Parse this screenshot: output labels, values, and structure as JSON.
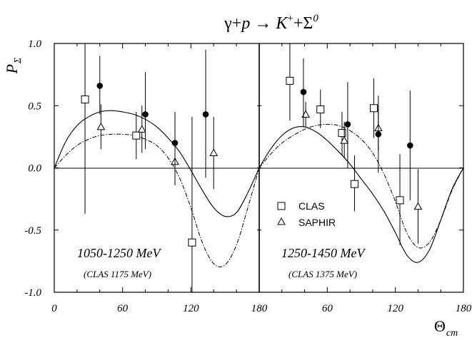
{
  "chart_data": {
    "type": "scatter",
    "title": {
      "gamma": "γ",
      "plus1": "+",
      "p": "p",
      "arrow": " → ",
      "k": "K",
      "k_sup": "+",
      "plus2": "+",
      "sigma": "Σ",
      "sigma_sup": "0"
    },
    "ylabel": {
      "base": "P",
      "sub": "Σ"
    },
    "xlabel": {
      "base": "Θ",
      "sub": "cm"
    },
    "ylim": [
      -1.0,
      1.0
    ],
    "yticks": [
      "1.0",
      "0.5",
      "0.0",
      "-0.5",
      "-1.0"
    ],
    "ytick_values": [
      1.0,
      0.5,
      0.0,
      -0.5,
      -1.0
    ],
    "xlim": [
      0,
      180
    ],
    "xtick_values": [
      0,
      60,
      120,
      180
    ],
    "xtick_labels_panel1": [
      "0",
      "60",
      "120",
      "180"
    ],
    "xtick_labels_panel2": [
      "60",
      "120",
      "180"
    ],
    "legend": {
      "position": "center-left of right panel",
      "clas": "CLAS",
      "saphir": "SAPHIR"
    },
    "panels": [
      {
        "energy_label": "1050-1250 MeV",
        "note": "(CLAS 1175 MeV)",
        "clas": [
          {
            "x": 27,
            "y": 0.55,
            "lo": -0.37,
            "hi": 1.0
          },
          {
            "x": 72,
            "y": 0.26,
            "lo": 0.07,
            "hi": 0.45
          },
          {
            "x": 121,
            "y": -0.6,
            "lo": -1.0,
            "hi": 0.41
          }
        ],
        "saphir": [
          {
            "x": 41,
            "y": 0.33,
            "lo": 0.15,
            "hi": 0.51
          },
          {
            "x": 77,
            "y": 0.31,
            "lo": 0.12,
            "hi": 0.5
          },
          {
            "x": 106,
            "y": 0.05,
            "lo": -0.14,
            "hi": 0.25
          },
          {
            "x": 140,
            "y": 0.12,
            "lo": -0.17,
            "hi": 0.41
          }
        ],
        "filled": [
          {
            "x": 40,
            "y": 0.66,
            "lo": 0.43,
            "hi": 0.9
          },
          {
            "x": 80,
            "y": 0.43,
            "lo": 0.15,
            "hi": 0.77
          },
          {
            "x": 106,
            "y": 0.2,
            "lo": -0.05,
            "hi": 0.45
          },
          {
            "x": 133,
            "y": 0.43,
            "lo": -0.08,
            "hi": 0.95
          }
        ],
        "solid_curve": {
          "x": [
            0,
            10,
            20,
            30,
            40,
            50,
            60,
            70,
            80,
            90,
            100,
            110,
            120,
            130,
            140,
            150,
            160,
            170,
            180
          ],
          "y": [
            0,
            0.21,
            0.34,
            0.41,
            0.45,
            0.46,
            0.45,
            0.43,
            0.39,
            0.33,
            0.24,
            0.13,
            -0.02,
            -0.18,
            -0.32,
            -0.39,
            -0.36,
            -0.2,
            0
          ]
        },
        "dashed_curve": {
          "x": [
            0,
            10,
            20,
            30,
            40,
            50,
            60,
            70,
            80,
            90,
            100,
            110,
            120,
            130,
            140,
            150,
            160,
            170,
            180
          ],
          "y": [
            0,
            0.1,
            0.18,
            0.23,
            0.26,
            0.27,
            0.27,
            0.26,
            0.23,
            0.18,
            0.08,
            -0.08,
            -0.32,
            -0.6,
            -0.77,
            -0.78,
            -0.62,
            -0.32,
            0
          ]
        }
      },
      {
        "energy_label": "1250-1450 MeV",
        "note": "(CLAS 1375 MeV)",
        "clas": [
          {
            "x": 27,
            "y": 0.7,
            "lo": 0.38,
            "hi": 1.0
          },
          {
            "x": 54,
            "y": 0.47,
            "lo": 0.32,
            "hi": 0.63
          },
          {
            "x": 73,
            "y": 0.28,
            "lo": 0.1,
            "hi": 0.45
          },
          {
            "x": 84,
            "y": -0.13,
            "lo": -0.35,
            "hi": 0.1
          },
          {
            "x": 101,
            "y": 0.48,
            "lo": 0.24,
            "hi": 0.72
          },
          {
            "x": 124,
            "y": -0.26,
            "lo": -0.62,
            "hi": 0.11
          }
        ],
        "saphir": [
          {
            "x": 41,
            "y": 0.43,
            "lo": 0.33,
            "hi": 0.53
          },
          {
            "x": 75,
            "y": 0.22,
            "lo": 0.08,
            "hi": 0.37
          },
          {
            "x": 105,
            "y": 0.32,
            "lo": 0.14,
            "hi": 0.5
          },
          {
            "x": 140,
            "y": -0.31,
            "lo": -0.61,
            "hi": -0.01
          }
        ],
        "filled": [
          {
            "x": 39,
            "y": 0.61,
            "lo": 0.33,
            "hi": 0.88
          },
          {
            "x": 78,
            "y": 0.35,
            "lo": 0.0,
            "hi": 0.69
          },
          {
            "x": 105,
            "y": 0.27,
            "lo": -0.04,
            "hi": 0.58
          },
          {
            "x": 133,
            "y": 0.18,
            "lo": -0.26,
            "hi": 0.62
          }
        ],
        "solid_curve": {
          "x": [
            0,
            10,
            20,
            30,
            40,
            50,
            60,
            70,
            80,
            90,
            100,
            110,
            120,
            130,
            140,
            150,
            160,
            170,
            180
          ],
          "y": [
            0,
            0.15,
            0.26,
            0.32,
            0.33,
            0.29,
            0.22,
            0.13,
            0.03,
            -0.09,
            -0.21,
            -0.35,
            -0.52,
            -0.7,
            -0.76,
            -0.66,
            -0.42,
            -0.17,
            0
          ]
        },
        "dashed_curve": {
          "x": [
            0,
            10,
            20,
            30,
            40,
            50,
            60,
            70,
            80,
            90,
            100,
            110,
            120,
            130,
            140,
            150,
            160,
            170,
            180
          ],
          "y": [
            0,
            0.11,
            0.2,
            0.26,
            0.31,
            0.34,
            0.35,
            0.34,
            0.3,
            0.23,
            0.12,
            -0.05,
            -0.27,
            -0.52,
            -0.64,
            -0.6,
            -0.42,
            -0.18,
            0
          ]
        }
      }
    ]
  }
}
